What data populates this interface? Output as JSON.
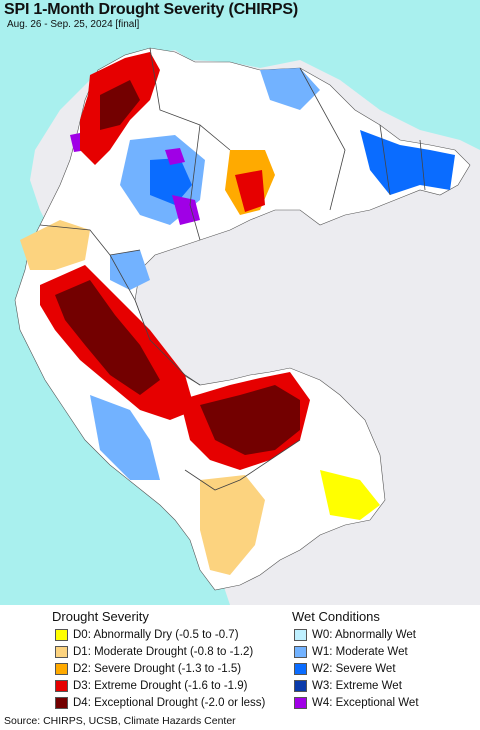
{
  "title": "SPI 1-Month Drought Severity (CHIRPS)",
  "subtitle": "Aug. 26 - Sep. 25, 2024 [final]",
  "colors": {
    "ocean": "#a9f0ee",
    "outside_land": "#ececf0",
    "border": "#555555"
  },
  "drought_legend": {
    "title": "Drought Severity",
    "items": [
      {
        "code": "D0",
        "label": "D0: Abnormally Dry (-0.5 to -0.7)",
        "color": "#ffff00"
      },
      {
        "code": "D1",
        "label": "D1: Moderate Drought (-0.8 to -1.2)",
        "color": "#fcd37f"
      },
      {
        "code": "D2",
        "label": "D2: Severe Drought (-1.3 to -1.5)",
        "color": "#ffaa00"
      },
      {
        "code": "D3",
        "label": "D3: Extreme Drought (-1.6 to -1.9)",
        "color": "#e60000"
      },
      {
        "code": "D4",
        "label": "D4: Exceptional Drought (-2.0 or less)",
        "color": "#730000"
      }
    ]
  },
  "wet_legend": {
    "title": "Wet Conditions",
    "items": [
      {
        "code": "W0",
        "label": "W0: Abnormally Wet",
        "color": "#bff0ff"
      },
      {
        "code": "W1",
        "label": "W1: Moderate Wet",
        "color": "#72b2ff"
      },
      {
        "code": "W2",
        "label": "W2: Severe Wet",
        "color": "#0a6cff"
      },
      {
        "code": "W3",
        "label": "W3: Extreme Wet",
        "color": "#0a3aaa"
      },
      {
        "code": "W4",
        "label": "W4: Exceptional Wet",
        "color": "#a000e6"
      }
    ]
  },
  "source": "Source: CHIRPS, UCSB, Climate Hazards Center"
}
